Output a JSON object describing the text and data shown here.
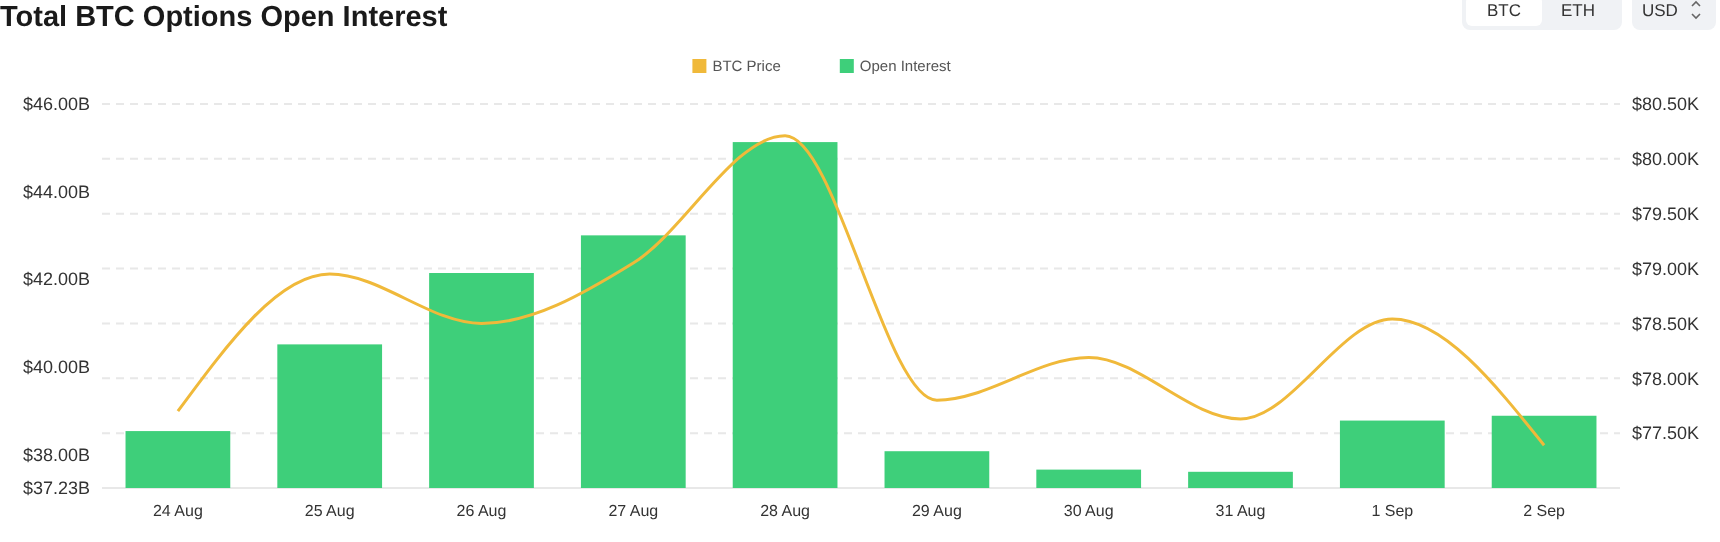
{
  "chart_data": {
    "type": "bar",
    "title": "Total BTC Options Open Interest",
    "categories": [
      "24 Aug",
      "25 Aug",
      "26 Aug",
      "27 Aug",
      "28 Aug",
      "29 Aug",
      "30 Aug",
      "31 Aug",
      "1 Sep",
      "2 Sep"
    ],
    "series": [
      {
        "name": "BTC Price",
        "type": "line",
        "axis": "y2",
        "color": "#f0b93a",
        "values": [
          77.7,
          78.95,
          78.5,
          79.05,
          80.21,
          77.8,
          78.19,
          77.63,
          78.54,
          77.39
        ]
      },
      {
        "name": "Open Interest",
        "color": "#3ecf7a",
        "values": [
          38.53,
          40.51,
          42.14,
          43.0,
          45.13,
          38.07,
          37.65,
          37.6,
          38.77,
          38.88
        ]
      }
    ],
    "ylim": [
      37.23,
      46
    ],
    "yticks": [
      {
        "value": 37.23,
        "label": "$37.23B"
      },
      {
        "value": 38,
        "label": "$38.00B"
      },
      {
        "value": 40,
        "label": "$40.00B"
      },
      {
        "value": 42,
        "label": "$42.00B"
      },
      {
        "value": 44,
        "label": "$44.00B"
      },
      {
        "value": 46,
        "label": "$46.00B"
      }
    ],
    "y2lim": [
      77.0,
      80.5
    ],
    "y2ticks": [
      {
        "value": 77.5,
        "label": "$77.50K"
      },
      {
        "value": 78,
        "label": "$78.00K"
      },
      {
        "value": 78.5,
        "label": "$78.50K"
      },
      {
        "value": 79,
        "label": "$79.00K"
      },
      {
        "value": 79.5,
        "label": "$79.50K"
      },
      {
        "value": 80,
        "label": "$80.00K"
      },
      {
        "value": 80.5,
        "label": "$80.50K"
      }
    ],
    "grid": true,
    "legend": "top",
    "annotations": [
      "BTC",
      "ETH",
      "USD"
    ]
  }
}
